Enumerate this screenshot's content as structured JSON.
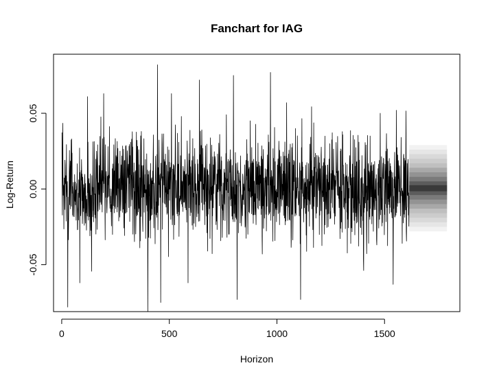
{
  "chart_data": {
    "type": "line",
    "title": "Fanchart for IAG",
    "xlabel": "Horizon",
    "ylabel": "Log-Return",
    "xlim": [
      -38,
      1850
    ],
    "ylim": [
      -0.081,
      0.089
    ],
    "xticks": [
      0,
      500,
      1000,
      1500
    ],
    "xtick_labels": [
      "0",
      "500",
      "1000",
      "1500"
    ],
    "yticks": [
      -0.05,
      0.0,
      0.05
    ],
    "ytick_labels": [
      "-0.05",
      "0.00",
      "0.05"
    ],
    "grid": false,
    "series": [
      {
        "color": "#000000",
        "n_points": 1614,
        "x_start": 1,
        "generator": {
          "seed": 20240613,
          "mean": 0.0005,
          "sd": 0.0168
        },
        "extremes": [
          {
            "x": 28,
            "y": -0.078
          },
          {
            "x": 84,
            "y": -0.062
          },
          {
            "x": 120,
            "y": 0.061
          },
          {
            "x": 195,
            "y": 0.063
          },
          {
            "x": 400,
            "y": -0.081
          },
          {
            "x": 445,
            "y": 0.082
          },
          {
            "x": 460,
            "y": -0.075
          },
          {
            "x": 510,
            "y": 0.063
          },
          {
            "x": 587,
            "y": -0.062
          },
          {
            "x": 640,
            "y": 0.072
          },
          {
            "x": 798,
            "y": 0.075
          },
          {
            "x": 815,
            "y": -0.073
          },
          {
            "x": 970,
            "y": 0.077
          },
          {
            "x": 1045,
            "y": 0.057
          },
          {
            "x": 1110,
            "y": -0.073
          },
          {
            "x": 1480,
            "y": 0.05
          },
          {
            "x": 1540,
            "y": -0.063
          },
          {
            "x": 1555,
            "y": 0.052
          }
        ]
      }
    ],
    "fan": {
      "x_start": 1615,
      "x_end": 1790,
      "center": 0.0005,
      "bands": [
        {
          "lower": -0.028,
          "upper": 0.029,
          "color": "#f2f2f2"
        },
        {
          "lower": -0.025,
          "upper": 0.026,
          "color": "#e6e6e6"
        },
        {
          "lower": -0.022,
          "upper": 0.023,
          "color": "#d9d9d9"
        },
        {
          "lower": -0.019,
          "upper": 0.02,
          "color": "#cccccc"
        },
        {
          "lower": -0.016,
          "upper": 0.017,
          "color": "#bfbfbf"
        },
        {
          "lower": -0.013,
          "upper": 0.014,
          "color": "#a8a8a8"
        },
        {
          "lower": -0.01,
          "upper": 0.011,
          "color": "#939393"
        },
        {
          "lower": -0.007,
          "upper": 0.008,
          "color": "#7a7a7a"
        },
        {
          "lower": -0.004,
          "upper": 0.005,
          "color": "#5c5c5c"
        },
        {
          "lower": -0.0015,
          "upper": 0.0025,
          "color": "#3a3a3a"
        }
      ]
    }
  }
}
